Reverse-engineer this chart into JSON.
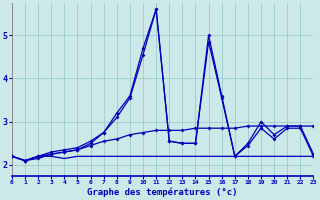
{
  "xlabel": "Graphe des températures (°c)",
  "x_ticks": [
    0,
    1,
    2,
    3,
    4,
    5,
    6,
    7,
    8,
    9,
    10,
    11,
    12,
    13,
    14,
    15,
    16,
    17,
    18,
    19,
    20,
    21,
    22,
    23
  ],
  "y_ticks": [
    2,
    3,
    4,
    5
  ],
  "xlim": [
    0,
    23
  ],
  "ylim": [
    1.75,
    5.75
  ],
  "background_color": "#cce8e8",
  "line_color": "#0000bb",
  "grid_color": "#99cccc",
  "series": [
    [
      2.2,
      2.1,
      2.2,
      2.2,
      2.15,
      2.2,
      2.2,
      2.2,
      2.2,
      2.2,
      2.2,
      2.2,
      2.2,
      2.2,
      2.2,
      2.2,
      2.2,
      2.2,
      2.2,
      2.2,
      2.2,
      2.2,
      2.2,
      2.2
    ],
    [
      2.2,
      2.1,
      2.2,
      2.25,
      2.3,
      2.35,
      2.45,
      2.55,
      2.6,
      2.7,
      2.75,
      2.8,
      2.8,
      2.8,
      2.85,
      2.85,
      2.85,
      2.85,
      2.9,
      2.9,
      2.9,
      2.9,
      2.9,
      2.9
    ],
    [
      2.2,
      2.1,
      2.2,
      2.3,
      2.35,
      2.4,
      2.55,
      2.75,
      3.1,
      3.55,
      4.55,
      5.6,
      2.55,
      2.5,
      2.5,
      4.85,
      3.55,
      2.2,
      2.45,
      2.85,
      2.6,
      2.85,
      2.85,
      2.2
    ],
    [
      2.2,
      2.1,
      2.15,
      2.25,
      2.3,
      2.35,
      2.5,
      2.75,
      3.2,
      3.6,
      4.7,
      5.6,
      2.55,
      2.5,
      2.5,
      5.0,
      3.6,
      2.2,
      2.5,
      3.0,
      2.7,
      2.9,
      2.9,
      2.25
    ]
  ],
  "has_markers": [
    false,
    true,
    true,
    true
  ]
}
